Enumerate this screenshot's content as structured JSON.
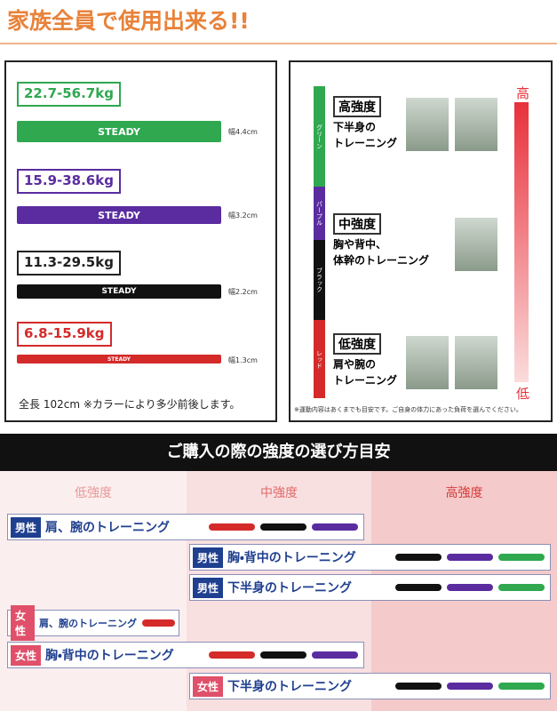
{
  "header": {
    "title": "家族全員で使用出来る!!"
  },
  "bands": [
    {
      "load": "22.7-56.7kg",
      "brand": "STEADY",
      "width": "幅4.4cm"
    },
    {
      "load": "15.9-38.6kg",
      "brand": "STEADY",
      "width": "幅3.2cm"
    },
    {
      "load": "11.3-29.5kg",
      "brand": "STEADY",
      "width": "幅2.2cm"
    },
    {
      "load": "6.8-15.9kg",
      "brand": "STEADY",
      "width": "幅1.3cm"
    }
  ],
  "length_note": "全長 102cm ※カラーにより多少前後します。",
  "intensity": {
    "scale_high": "高",
    "scale_low": "低",
    "colors": [
      "グリーン",
      "パープル",
      "ブラック",
      "レッド"
    ],
    "levels": [
      {
        "label": "高強度",
        "lines": [
          "下半身の",
          "トレーニング"
        ]
      },
      {
        "label": "中強度",
        "lines": [
          "胸や背中、",
          "体幹のトレーニング"
        ]
      },
      {
        "label": "低強度",
        "lines": [
          "肩や腕の",
          "トレーニング"
        ]
      }
    ],
    "note": "※運動内容はあくまでも目安です。ご自身の体力にあった負荷を選んでください。"
  },
  "guide": {
    "title": "ご購入の際の強度の選び方目安",
    "columns": [
      "低強度",
      "中強度",
      "高強度"
    ],
    "rows": [
      {
        "gender": "男性",
        "target": "肩、腕のトレーニング"
      },
      {
        "gender": "男性",
        "target": "胸・背中のトレーニング"
      },
      {
        "gender": "男性",
        "target": "下半身のトレーニング"
      },
      {
        "gender": "女性",
        "target": "肩、腕のトレーニング"
      },
      {
        "gender": "女性",
        "target": "胸・背中のトレーニング"
      },
      {
        "gender": "女性",
        "target": "下半身のトレーニング"
      }
    ]
  }
}
